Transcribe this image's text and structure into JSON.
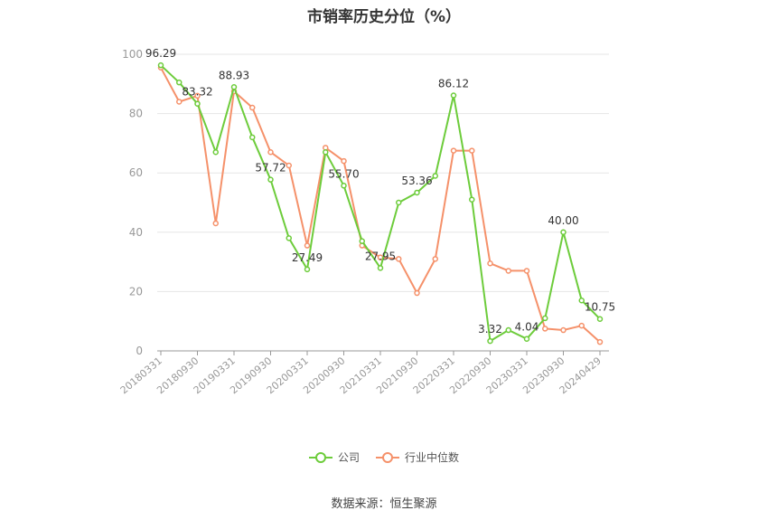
{
  "title": "市销率历史分位（%）",
  "source": "数据来源：恒生聚源",
  "colors": {
    "company": "#6dcc3b",
    "industry": "#f5916a",
    "grid": "#e6e6e6",
    "axis": "#999999"
  },
  "chart_data": {
    "type": "line",
    "ylim": [
      0,
      100
    ],
    "yticks": [
      0,
      20,
      40,
      60,
      80,
      100
    ],
    "xtick_labels": [
      "20180331",
      "20180930",
      "20190331",
      "20190930",
      "20200331",
      "20200930",
      "20210331",
      "20210930",
      "20220331",
      "20220930",
      "20230331",
      "20230930",
      "20240429"
    ],
    "point_count": 25,
    "legend_position": "bottom",
    "series": [
      {
        "name": "公司",
        "key": "company",
        "values": [
          96.29,
          90.5,
          83.32,
          67.0,
          88.93,
          72.0,
          57.72,
          38.0,
          27.49,
          67.0,
          55.7,
          37.0,
          27.95,
          50.0,
          53.36,
          59.0,
          86.12,
          51.0,
          3.32,
          7.0,
          4.04,
          11.0,
          40.0,
          17.0,
          10.75
        ]
      },
      {
        "name": "行业中位数",
        "key": "industry",
        "values": [
          95.5,
          84.0,
          86.0,
          43.0,
          87.5,
          82.0,
          67.0,
          62.5,
          35.5,
          68.5,
          64.0,
          35.5,
          31.5,
          31.0,
          19.5,
          31.0,
          67.5,
          67.5,
          29.5,
          27.0,
          27.0,
          7.5,
          7.0,
          8.5,
          3.0
        ]
      }
    ],
    "data_labels": [
      {
        "index": 0,
        "text": "96.29"
      },
      {
        "index": 2,
        "text": "83.32"
      },
      {
        "index": 4,
        "text": "88.93"
      },
      {
        "index": 6,
        "text": "57.72"
      },
      {
        "index": 8,
        "text": "27.49"
      },
      {
        "index": 10,
        "text": "55.70"
      },
      {
        "index": 12,
        "text": "27.95"
      },
      {
        "index": 14,
        "text": "53.36"
      },
      {
        "index": 16,
        "text": "86.12"
      },
      {
        "index": 18,
        "text": "3.32"
      },
      {
        "index": 20,
        "text": "4.04"
      },
      {
        "index": 22,
        "text": "40.00"
      },
      {
        "index": 24,
        "text": "10.75"
      }
    ]
  }
}
